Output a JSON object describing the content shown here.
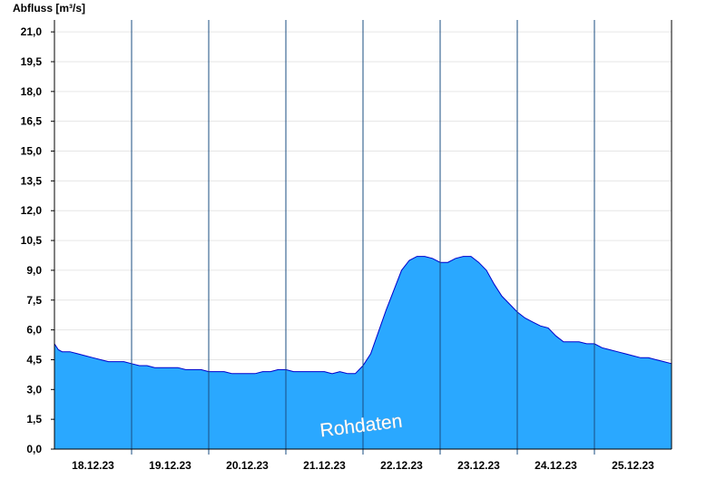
{
  "chart_data": {
    "type": "area",
    "ylabel": "Abfluss [m³/s]",
    "xlabel": "",
    "ylim": [
      0,
      21.6
    ],
    "y_ticks": [
      "0,0",
      "1,5",
      "3,0",
      "4,5",
      "6,0",
      "7,5",
      "9,0",
      "10,5",
      "12,0",
      "13,5",
      "15,0",
      "16,5",
      "18,0",
      "19,5",
      "21,0"
    ],
    "x_ticks": [
      "18.12.23",
      "19.12.23",
      "20.12.23",
      "21.12.23",
      "22.12.23",
      "23.12.23",
      "24.12.23",
      "25.12.23"
    ],
    "grid": true,
    "watermark": "Rohdaten",
    "colors": {
      "fill": "#2aa8ff",
      "line": "#0000cc",
      "grid": "#e6e6e6",
      "day_separator": "#1a4d80"
    },
    "series": [
      {
        "x": [
          0,
          0.05,
          0.1,
          0.2,
          0.3,
          0.4,
          0.5,
          0.6,
          0.7,
          0.8,
          0.9,
          1.0,
          1.1,
          1.2,
          1.3,
          1.4,
          1.5,
          1.6,
          1.7,
          1.8,
          1.9,
          2.0,
          2.1,
          2.2,
          2.3,
          2.4,
          2.5,
          2.6,
          2.7,
          2.8,
          2.9,
          3.0,
          3.1,
          3.2,
          3.3,
          3.4,
          3.5,
          3.6,
          3.7,
          3.8,
          3.9,
          4.0,
          4.1,
          4.2,
          4.3,
          4.4,
          4.5,
          4.6,
          4.7,
          4.8,
          4.9,
          5.0,
          5.1,
          5.2,
          5.3,
          5.4,
          5.5,
          5.6,
          5.7,
          5.8,
          5.9,
          6.0,
          6.1,
          6.2,
          6.3,
          6.4,
          6.5,
          6.6,
          6.7,
          6.8,
          6.9,
          7.0,
          7.1,
          7.2,
          7.3,
          7.4,
          7.5,
          7.6,
          7.7,
          7.8,
          7.9,
          8.0
        ],
        "values": [
          5.3,
          5.0,
          4.9,
          4.9,
          4.8,
          4.7,
          4.6,
          4.5,
          4.4,
          4.4,
          4.4,
          4.3,
          4.2,
          4.2,
          4.1,
          4.1,
          4.1,
          4.1,
          4.0,
          4.0,
          4.0,
          3.9,
          3.9,
          3.9,
          3.8,
          3.8,
          3.8,
          3.8,
          3.9,
          3.9,
          4.0,
          4.0,
          3.9,
          3.9,
          3.9,
          3.9,
          3.9,
          3.8,
          3.9,
          3.8,
          3.8,
          4.2,
          4.8,
          5.9,
          7.0,
          8.0,
          9.0,
          9.5,
          9.7,
          9.7,
          9.6,
          9.4,
          9.4,
          9.6,
          9.7,
          9.7,
          9.4,
          9.0,
          8.3,
          7.7,
          7.3,
          6.9,
          6.6,
          6.4,
          6.2,
          6.1,
          5.7,
          5.4,
          5.4,
          5.4,
          5.3,
          5.3,
          5.1,
          5.0,
          4.9,
          4.8,
          4.7,
          4.6,
          4.6,
          4.5,
          4.4,
          4.3
        ]
      }
    ]
  }
}
